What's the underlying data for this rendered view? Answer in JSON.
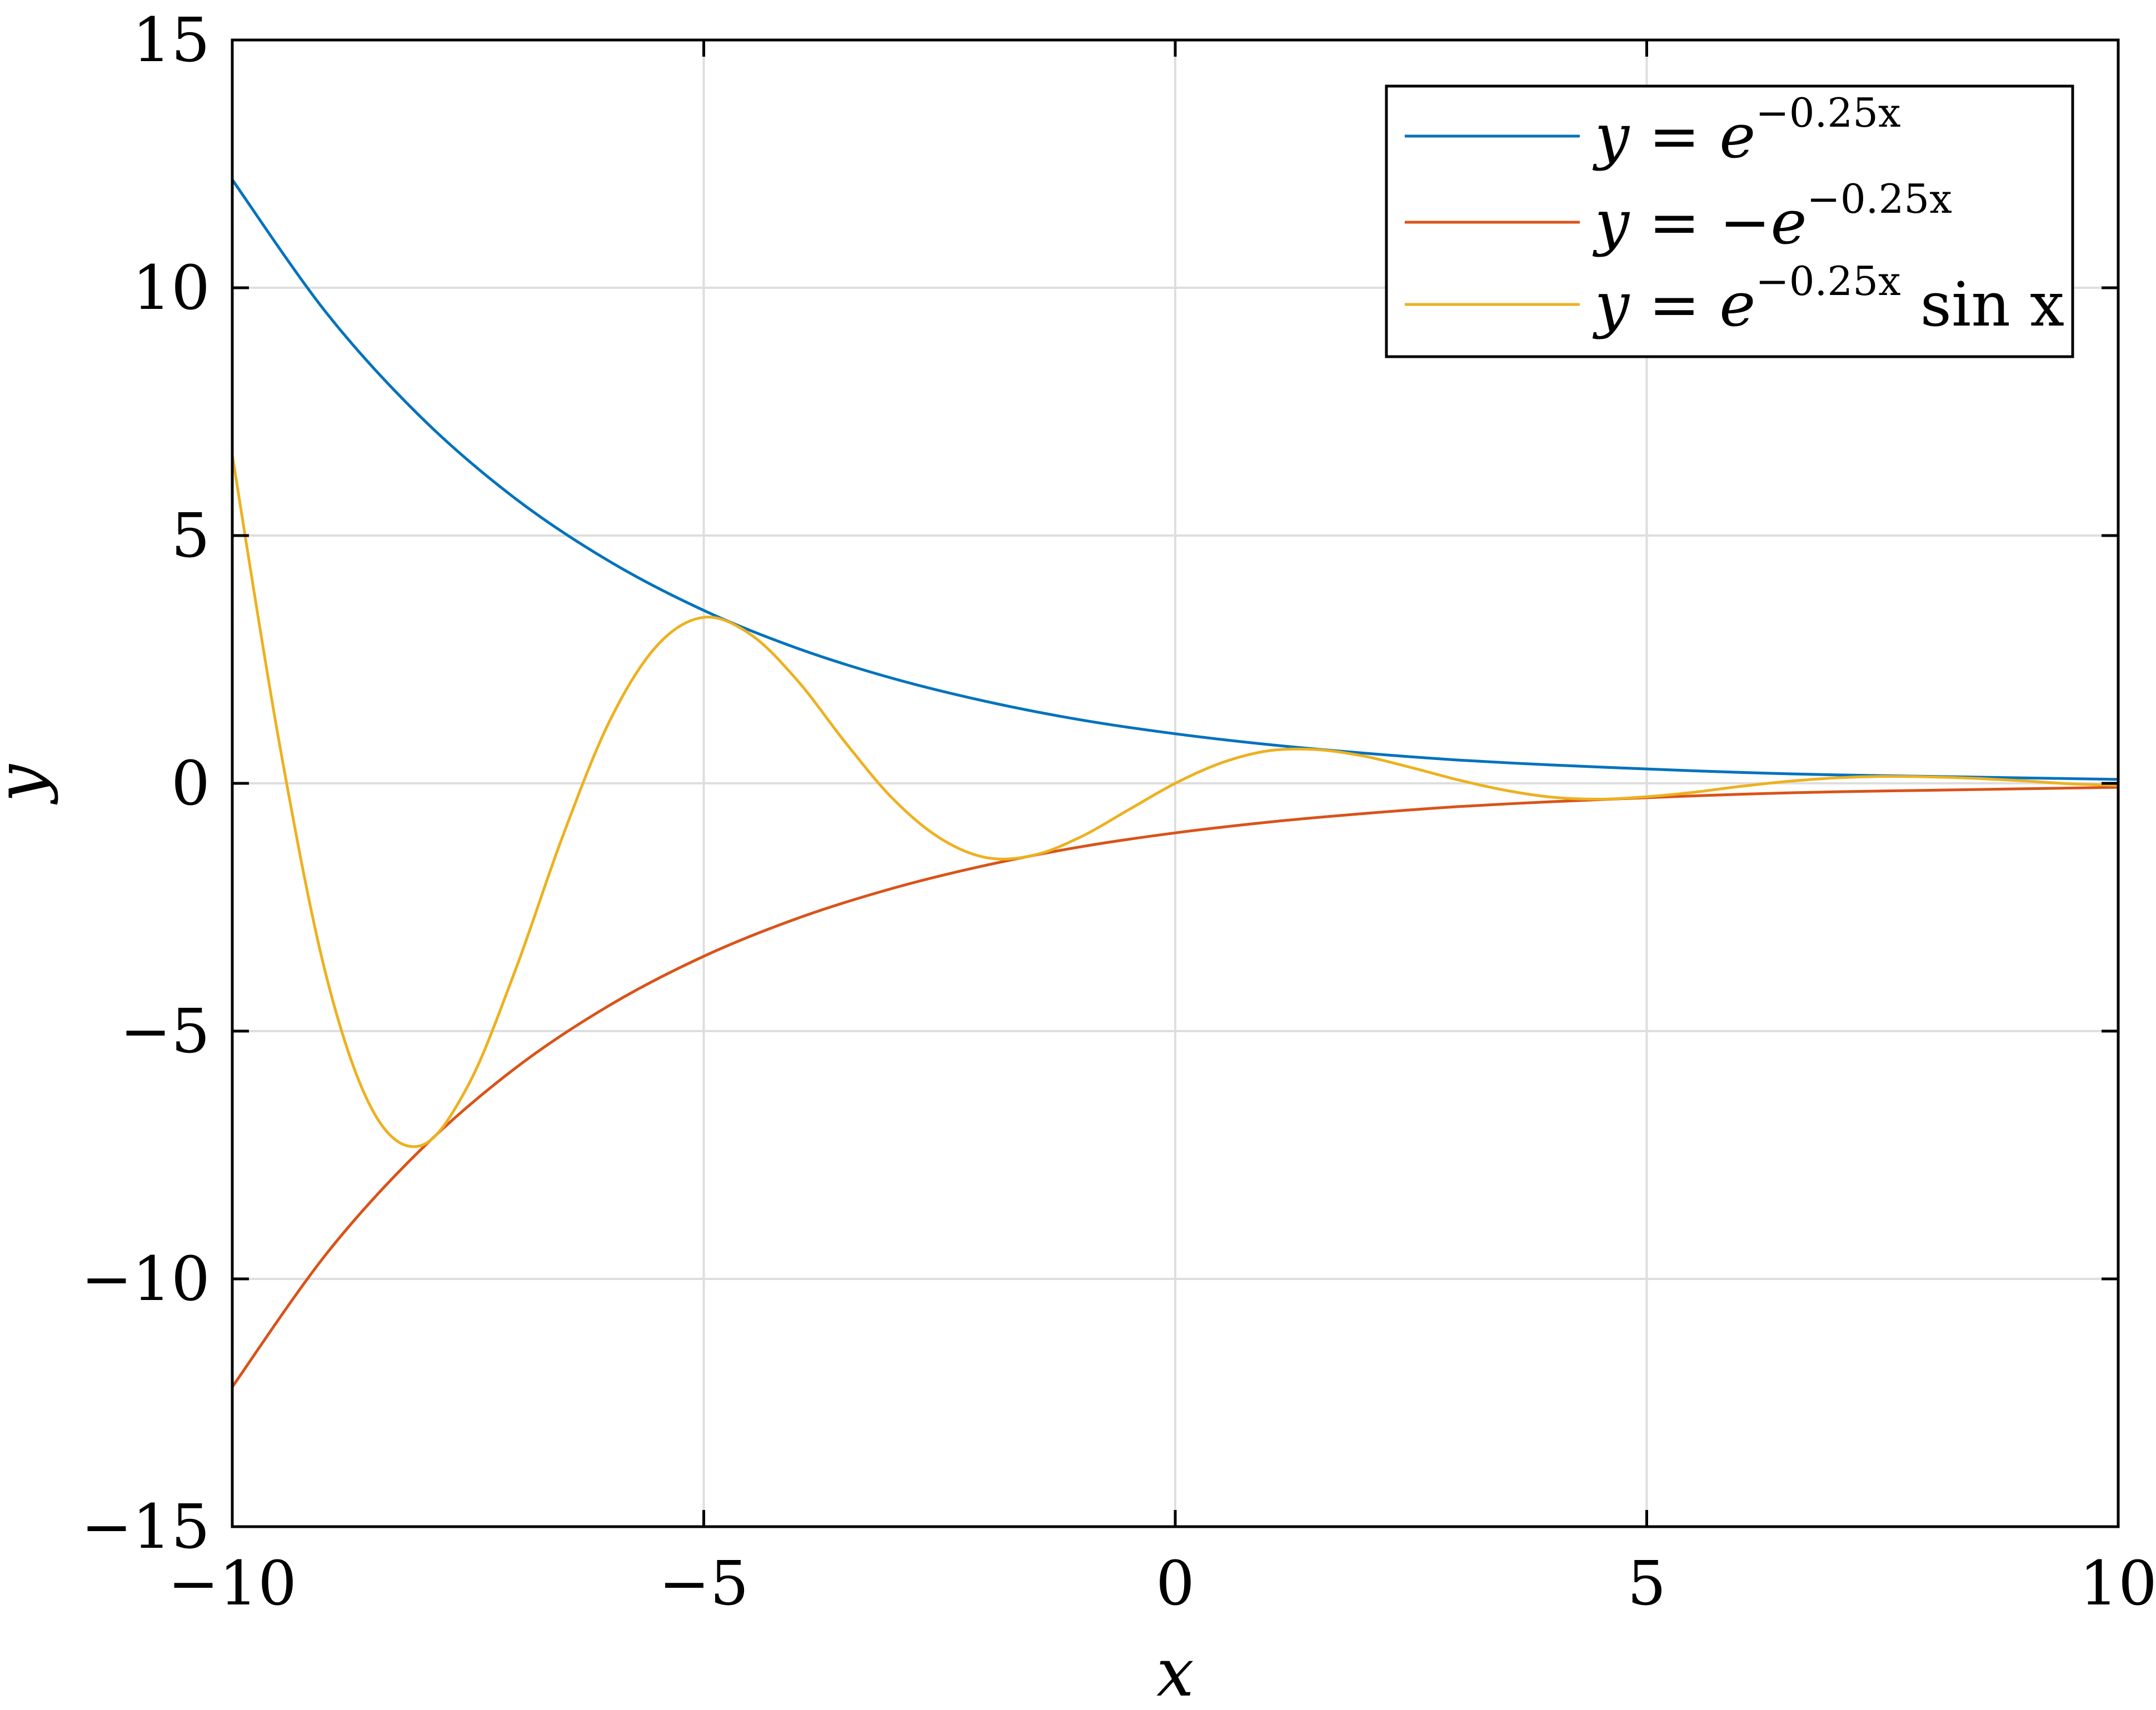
{
  "chart_data": {
    "type": "line",
    "title": "",
    "xlabel": "x",
    "ylabel": "y",
    "xlim": [
      -10,
      10
    ],
    "ylim": [
      -15,
      15
    ],
    "xticks": [
      -10,
      -5,
      0,
      5,
      10
    ],
    "yticks": [
      -15,
      -10,
      -5,
      0,
      5,
      10,
      15
    ],
    "xtick_labels": [
      "−10",
      "−5",
      "0",
      "5",
      "10"
    ],
    "ytick_labels": [
      "−15",
      "−10",
      "−5",
      "0",
      "5",
      "10",
      "15"
    ],
    "grid": true,
    "legend_position": "top-right",
    "series": [
      {
        "name": "y = e^{−0.25x}",
        "color": "#0072BD",
        "x": [
          -10,
          -9,
          -8,
          -7,
          -6,
          -5,
          -4,
          -3,
          -2,
          -1,
          0,
          1,
          2,
          3,
          4,
          5,
          6,
          7,
          8,
          9,
          10
        ],
        "y": [
          12.18,
          9.49,
          7.39,
          5.75,
          4.48,
          3.49,
          2.72,
          2.12,
          1.65,
          1.28,
          1.0,
          0.78,
          0.61,
          0.47,
          0.37,
          0.29,
          0.22,
          0.17,
          0.14,
          0.11,
          0.08
        ]
      },
      {
        "name": "y = −e^{−0.25x}",
        "color": "#D95319",
        "x": [
          -10,
          -9,
          -8,
          -7,
          -6,
          -5,
          -4,
          -3,
          -2,
          -1,
          0,
          1,
          2,
          3,
          4,
          5,
          6,
          7,
          8,
          9,
          10
        ],
        "y": [
          -12.18,
          -9.49,
          -7.39,
          -5.75,
          -4.48,
          -3.49,
          -2.72,
          -2.12,
          -1.65,
          -1.28,
          -1.0,
          -0.78,
          -0.61,
          -0.47,
          -0.37,
          -0.29,
          -0.22,
          -0.17,
          -0.14,
          -0.11,
          -0.08
        ]
      },
      {
        "name": "y = e^{−0.25x} sin x",
        "color": "#EDB120",
        "x": [
          -10,
          -9.5,
          -9,
          -8.5,
          -8,
          -7.5,
          -7,
          -6.5,
          -6,
          -5.5,
          -5,
          -4.5,
          -4,
          -3.5,
          -3,
          -2.5,
          -2,
          -1.5,
          -1,
          -0.5,
          0,
          0.5,
          1,
          1.5,
          2,
          2.5,
          3,
          3.5,
          4,
          4.5,
          5,
          5.5,
          6,
          6.5,
          7,
          7.5,
          8,
          8.5,
          9,
          9.5,
          10
        ],
        "y": [
          6.63,
          0.8,
          -3.91,
          -6.64,
          -7.31,
          -6.1,
          -3.78,
          -1.09,
          1.25,
          2.77,
          3.35,
          3.0,
          2.06,
          0.83,
          -0.3,
          -1.1,
          -1.5,
          -1.45,
          -1.08,
          -0.54,
          0.0,
          0.42,
          0.66,
          0.68,
          0.55,
          0.32,
          0.07,
          -0.14,
          -0.28,
          -0.32,
          -0.27,
          -0.18,
          -0.06,
          0.04,
          0.11,
          0.14,
          0.13,
          0.1,
          0.05,
          -0.01,
          -0.04
        ]
      }
    ]
  },
  "legend": {
    "items": [
      {
        "lhs": "y",
        "eq": " = ",
        "neg": "",
        "base": "e",
        "exp": "−0.25x",
        "tail": ""
      },
      {
        "lhs": "y",
        "eq": " = ",
        "neg": "−",
        "base": "e",
        "exp": "−0.25x",
        "tail": ""
      },
      {
        "lhs": "y",
        "eq": " = ",
        "neg": "",
        "base": "e",
        "exp": "−0.25x",
        "tail": " sin x"
      }
    ]
  }
}
